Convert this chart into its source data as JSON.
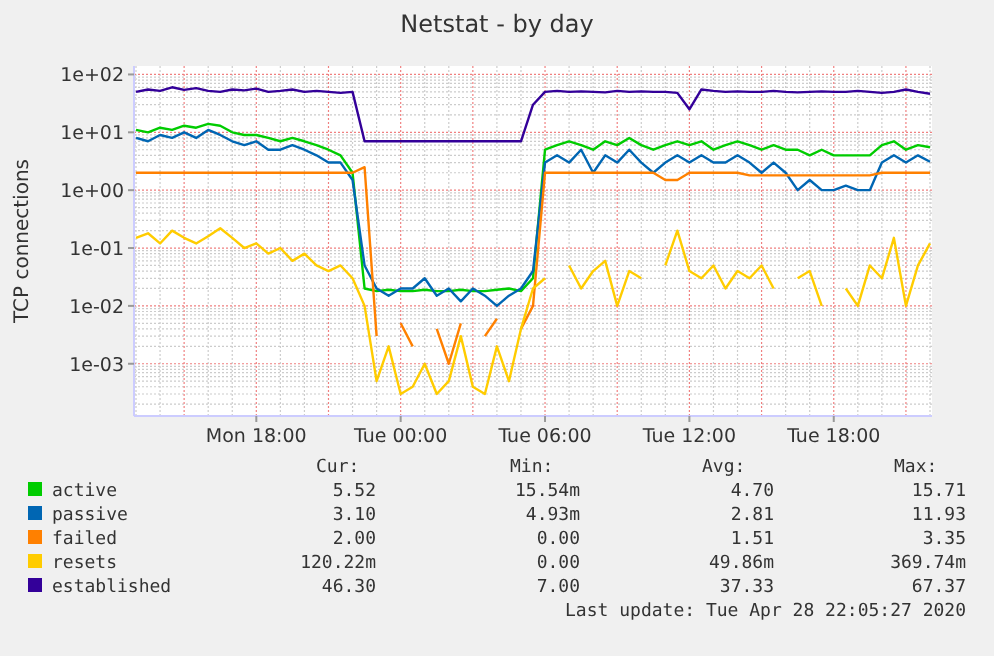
{
  "chart_data": {
    "type": "line",
    "title": "Netstat - by day",
    "ylabel": "TCP connections",
    "log": "y",
    "grid": true,
    "legend": "bottom",
    "marker": "none",
    "line_style": "solid",
    "xlim": [
      "2020-04-27T12:55",
      "2020-04-28T22:05"
    ],
    "xticks": [
      {
        "value": "2020-04-27T18:00",
        "label": "Mon 18:00"
      },
      {
        "value": "2020-04-28T00:00",
        "label": "Tue 00:00"
      },
      {
        "value": "2020-04-28T06:00",
        "label": "Tue 06:00"
      },
      {
        "value": "2020-04-28T12:00",
        "label": "Tue 12:00"
      },
      {
        "value": "2020-04-28T18:00",
        "label": "Tue 18:00"
      }
    ],
    "ylim": [
      0.000125,
      140
    ],
    "yticks": [
      {
        "value": 0.001,
        "label": "1e-03"
      },
      {
        "value": 0.01,
        "label": "1e-02"
      },
      {
        "value": 0.1,
        "label": "1e-01"
      },
      {
        "value": 1,
        "label": "1e+00"
      },
      {
        "value": 10,
        "label": "1e+01"
      },
      {
        "value": 100,
        "label": "1e+02"
      }
    ],
    "x": [
      "2020-04-27T13:00",
      "2020-04-27T13:30",
      "2020-04-27T14:00",
      "2020-04-27T14:30",
      "2020-04-27T15:00",
      "2020-04-27T15:30",
      "2020-04-27T16:00",
      "2020-04-27T16:30",
      "2020-04-27T17:00",
      "2020-04-27T17:30",
      "2020-04-27T18:00",
      "2020-04-27T18:30",
      "2020-04-27T19:00",
      "2020-04-27T19:30",
      "2020-04-27T20:00",
      "2020-04-27T20:30",
      "2020-04-27T21:00",
      "2020-04-27T21:30",
      "2020-04-27T22:00",
      "2020-04-27T22:30",
      "2020-04-27T23:00",
      "2020-04-27T23:30",
      "2020-04-28T00:00",
      "2020-04-28T00:30",
      "2020-04-28T01:00",
      "2020-04-28T01:30",
      "2020-04-28T02:00",
      "2020-04-28T02:30",
      "2020-04-28T03:00",
      "2020-04-28T03:30",
      "2020-04-28T04:00",
      "2020-04-28T04:30",
      "2020-04-28T05:00",
      "2020-04-28T05:30",
      "2020-04-28T06:00",
      "2020-04-28T06:30",
      "2020-04-28T07:00",
      "2020-04-28T07:30",
      "2020-04-28T08:00",
      "2020-04-28T08:30",
      "2020-04-28T09:00",
      "2020-04-28T09:30",
      "2020-04-28T10:00",
      "2020-04-28T10:30",
      "2020-04-28T11:00",
      "2020-04-28T11:30",
      "2020-04-28T12:00",
      "2020-04-28T12:30",
      "2020-04-28T13:00",
      "2020-04-28T13:30",
      "2020-04-28T14:00",
      "2020-04-28T14:30",
      "2020-04-28T15:00",
      "2020-04-28T15:30",
      "2020-04-28T16:00",
      "2020-04-28T16:30",
      "2020-04-28T17:00",
      "2020-04-28T17:30",
      "2020-04-28T18:00",
      "2020-04-28T18:30",
      "2020-04-28T19:00",
      "2020-04-28T19:30",
      "2020-04-28T20:00",
      "2020-04-28T20:30",
      "2020-04-28T21:00",
      "2020-04-28T21:30",
      "2020-04-28T22:00"
    ],
    "series": [
      {
        "name": "active",
        "color": "#00cc00",
        "values": [
          11,
          10,
          12,
          11,
          13,
          12,
          14,
          13,
          10,
          9,
          9,
          8,
          7,
          8,
          7,
          6,
          5,
          4,
          2,
          0.02,
          0.018,
          0.019,
          0.018,
          0.018,
          0.019,
          0.018,
          0.018,
          0.019,
          0.018,
          0.018,
          0.019,
          0.02,
          0.018,
          0.03,
          5,
          6,
          7,
          6,
          5,
          7,
          6,
          8,
          6,
          5,
          6,
          7,
          6,
          7,
          5,
          6,
          7,
          6,
          5,
          6,
          5,
          5,
          4,
          5,
          4,
          4,
          4,
          4,
          6,
          7,
          5,
          6,
          5.52
        ]
      },
      {
        "name": "passive",
        "color": "#0066b3",
        "values": [
          8,
          7,
          9,
          8,
          10,
          8,
          11,
          9,
          7,
          6,
          7,
          5,
          5,
          6,
          5,
          4,
          3,
          3,
          1.5,
          0.05,
          0.02,
          0.015,
          0.02,
          0.02,
          0.03,
          0.015,
          0.02,
          0.012,
          0.02,
          0.015,
          0.01,
          0.015,
          0.02,
          0.04,
          3,
          4,
          3,
          5,
          2,
          4,
          3,
          5,
          3,
          2,
          3,
          4,
          3,
          4,
          3,
          3,
          4,
          3,
          2,
          3,
          2,
          1,
          1.5,
          1,
          1,
          1.2,
          1,
          1,
          3,
          4,
          3,
          4,
          3.1
        ]
      },
      {
        "name": "failed",
        "color": "#ff8000",
        "values": [
          2,
          2,
          2,
          2,
          2,
          2,
          2,
          2,
          2,
          2,
          2,
          2,
          2,
          2,
          2,
          2,
          2,
          2,
          2,
          2.5,
          0.003,
          null,
          0.005,
          0.002,
          null,
          0.004,
          0.001,
          0.005,
          null,
          0.003,
          0.006,
          null,
          0.004,
          0.01,
          2,
          2,
          2,
          2,
          2,
          2,
          2,
          2,
          2,
          2,
          1.5,
          1.5,
          2,
          2,
          2,
          2,
          2,
          1.8,
          1.8,
          1.8,
          1.8,
          1.8,
          1.8,
          1.8,
          1.8,
          1.8,
          1.8,
          1.8,
          2,
          2,
          2,
          2,
          2
        ]
      },
      {
        "name": "resets",
        "color": "#ffcc00",
        "values": [
          0.15,
          0.18,
          0.12,
          0.2,
          0.15,
          0.12,
          0.16,
          0.22,
          0.15,
          0.1,
          0.12,
          0.08,
          0.1,
          0.06,
          0.08,
          0.05,
          0.04,
          0.05,
          0.03,
          0.01,
          0.0005,
          0.002,
          0.0003,
          0.0004,
          0.001,
          0.0003,
          0.0005,
          0.003,
          0.0004,
          0.0003,
          0.002,
          0.0005,
          0.004,
          0.02,
          0.03,
          null,
          0.05,
          0.02,
          0.04,
          0.06,
          0.01,
          0.04,
          0.03,
          null,
          0.05,
          0.2,
          0.04,
          0.03,
          0.05,
          0.02,
          0.04,
          0.03,
          0.05,
          0.02,
          null,
          0.03,
          0.04,
          0.01,
          null,
          0.02,
          0.01,
          0.05,
          0.03,
          0.15,
          0.01,
          0.05,
          0.12
        ]
      },
      {
        "name": "established",
        "color": "#330099",
        "values": [
          50,
          55,
          52,
          60,
          54,
          58,
          52,
          50,
          55,
          53,
          57,
          50,
          52,
          55,
          50,
          52,
          50,
          48,
          50,
          7,
          7,
          7,
          7,
          7,
          7,
          7,
          7,
          7,
          7,
          7,
          7,
          7,
          7,
          30,
          50,
          52,
          50,
          51,
          50,
          49,
          52,
          50,
          51,
          50,
          50,
          48,
          25,
          55,
          52,
          50,
          51,
          50,
          50,
          52,
          50,
          49,
          50,
          51,
          50,
          50,
          52,
          50,
          48,
          50,
          55,
          50,
          46.3
        ]
      }
    ],
    "annotations": [
      "Cur:",
      "Min:",
      "Avg:",
      "Max:",
      "5.52",
      "15.54m",
      "4.70",
      "15.71",
      "3.10",
      "4.93m",
      "2.81",
      "11.93",
      "2.00",
      "0.00",
      "1.51",
      "3.35",
      "120.22m",
      "0.00",
      "49.86m",
      "369.74m",
      "46.30",
      "7.00",
      "37.33",
      "67.37",
      "Last update: Tue Apr 28 22:05:27 2020"
    ]
  }
}
